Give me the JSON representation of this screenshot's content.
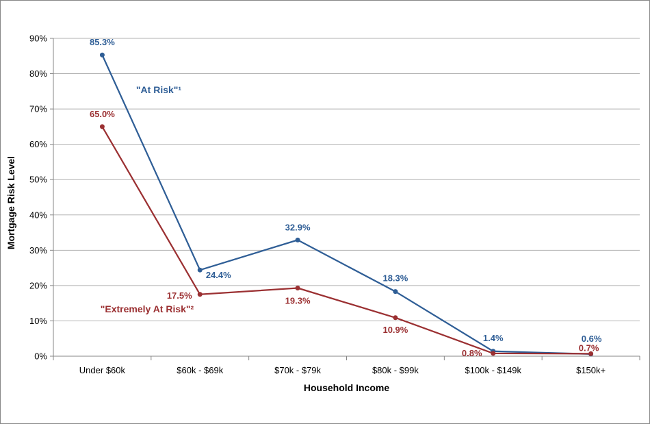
{
  "chart_data": {
    "type": "line",
    "categories": [
      "Under $60k",
      "$60k - $69k",
      "$70k - $79k",
      "$80k - $99k",
      "$100k - $149k",
      "$150k+"
    ],
    "series": [
      {
        "name": "\"At Risk\"¹",
        "values": [
          85.3,
          24.4,
          32.9,
          18.3,
          1.4,
          0.6
        ],
        "labels": [
          "85.3%",
          "24.4%",
          "32.9%",
          "18.3%",
          "1.4%",
          "0.6%"
        ],
        "color": "#2F5E96"
      },
      {
        "name": "\"Extremely At Risk\"²",
        "values": [
          65.0,
          17.5,
          19.3,
          10.9,
          0.8,
          0.7
        ],
        "labels": [
          "65.0%",
          "17.5%",
          "19.3%",
          "10.9%",
          "0.8%",
          "0.7%"
        ],
        "color": "#9B3032"
      }
    ],
    "xlabel": "Household Income",
    "ylabel": "Mortgage Risk Level",
    "ylim": [
      0,
      90
    ],
    "yticks": [
      "0%",
      "10%",
      "20%",
      "30%",
      "40%",
      "50%",
      "60%",
      "70%",
      "80%",
      "90%"
    ],
    "grid": "horizontal",
    "legend": "inline labels"
  }
}
